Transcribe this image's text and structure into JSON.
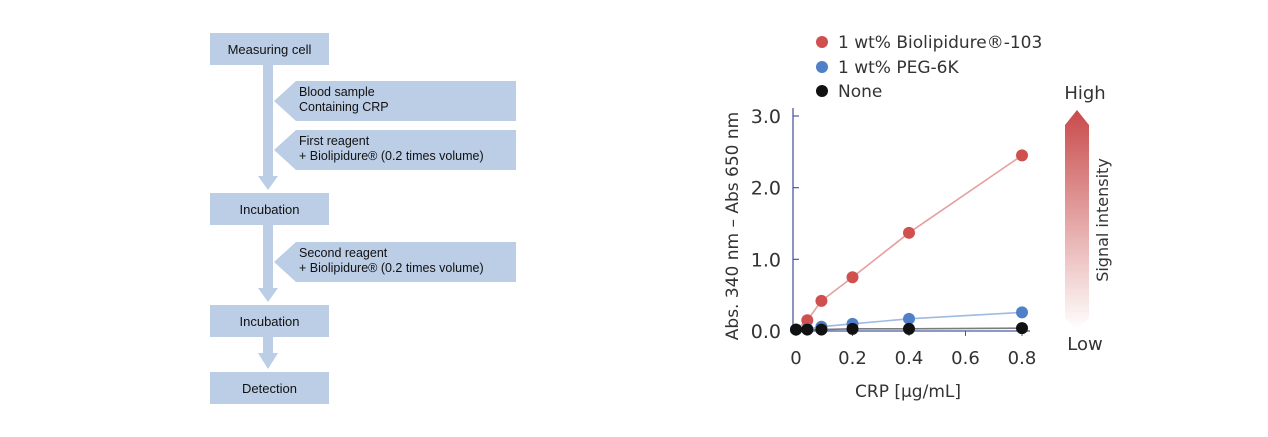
{
  "flowchart": {
    "steps": {
      "measuring_cell": "Measuring cell",
      "incubation_1": "Incubation",
      "incubation_2": "Incubation",
      "detection": "Detection"
    },
    "inputs": {
      "blood_sample": [
        "Blood sample",
        "Containing CRP"
      ],
      "first_reagent": [
        "First reagent",
        "+ Biolipidure® (0.2 times volume)"
      ],
      "second_reagent": [
        "Second reagent",
        "+ Biolipidure® (0.2 times volume)"
      ]
    }
  },
  "chart_data": {
    "type": "line",
    "xlabel": "CRP [μg/mL]",
    "ylabel": "Abs. 340 nm – Abs 650 nm",
    "xlim": [
      0,
      0.8
    ],
    "ylim": [
      0,
      3.0
    ],
    "x_ticks": [
      "0",
      "0.2",
      "0.4",
      "0.6",
      "0.8"
    ],
    "y_ticks": [
      "0.0",
      "1.0",
      "2.0",
      "3.0"
    ],
    "grid": false,
    "legend_position": "top-left",
    "series": [
      {
        "name": "1 wt% Biolipidure®-103",
        "color": "#d05050",
        "x": [
          0,
          0.04,
          0.09,
          0.2,
          0.4,
          0.8
        ],
        "y": [
          0.02,
          0.15,
          0.42,
          0.75,
          1.37,
          2.45
        ]
      },
      {
        "name": "1 wt% PEG-6K",
        "color": "#5080c8",
        "x": [
          0,
          0.04,
          0.09,
          0.2,
          0.4,
          0.8
        ],
        "y": [
          0.02,
          0.03,
          0.06,
          0.1,
          0.17,
          0.26
        ]
      },
      {
        "name": "None",
        "color": "#111111",
        "x": [
          0,
          0.04,
          0.09,
          0.2,
          0.4,
          0.8
        ],
        "y": [
          0.02,
          0.02,
          0.02,
          0.03,
          0.03,
          0.04
        ]
      }
    ],
    "signal_bar": {
      "label": "Signal intensity",
      "high": "High",
      "low": "Low"
    }
  }
}
